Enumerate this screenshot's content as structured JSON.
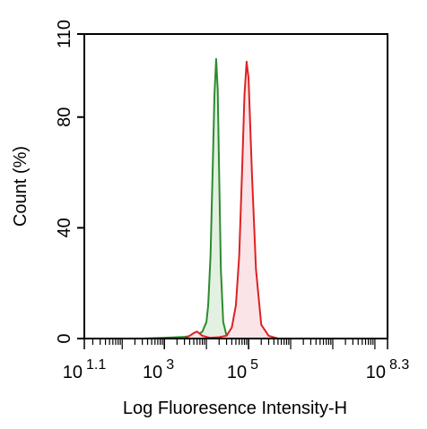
{
  "chart_data": {
    "type": "area",
    "xlabel": "Log Fluoresence Intensity-H",
    "ylabel": "Count  (%)",
    "x_scale": "log",
    "xlim": [
      12.59,
      199526231
    ],
    "ylim": [
      0,
      110
    ],
    "x_ticks": [
      {
        "base": "10",
        "exponent": "1.1",
        "value": 12.59
      },
      {
        "base": "10",
        "exponent": "3",
        "value": 1000
      },
      {
        "base": "10",
        "exponent": "5",
        "value": 100000
      },
      {
        "base": "10",
        "exponent": "8.3",
        "value": 199526231
      }
    ],
    "y_ticks": [
      {
        "label": "0",
        "value": 0
      },
      {
        "label": "40",
        "value": 40
      },
      {
        "label": "80",
        "value": 80
      },
      {
        "label": "110",
        "value": 110
      }
    ],
    "grid": false,
    "series": [
      {
        "color": "#2e8b2e",
        "fill": "#e3f1e3",
        "x": [
          300,
          1000,
          3000,
          6000,
          8000,
          10000,
          11000,
          12500,
          14000,
          15500,
          17000,
          18500,
          20000,
          22000,
          25000,
          30000,
          45000
        ],
        "y": [
          0,
          0.3,
          0.6,
          1.2,
          2.5,
          6,
          12,
          30,
          60,
          88,
          101,
          90,
          60,
          25,
          6,
          1,
          0
        ]
      },
      {
        "color": "#dd2222",
        "fill": "#fbe4e8",
        "x": [
          3000,
          4000,
          5000,
          6000,
          8000,
          12000,
          20000,
          30000,
          40000,
          50000,
          60000,
          70000,
          80000,
          90000,
          100000,
          120000,
          150000,
          200000,
          300000,
          500000
        ],
        "y": [
          0,
          1,
          2,
          2.5,
          1,
          0.3,
          0.5,
          1,
          4,
          12,
          30,
          60,
          88,
          100,
          94,
          60,
          25,
          5,
          1,
          0
        ]
      }
    ]
  }
}
